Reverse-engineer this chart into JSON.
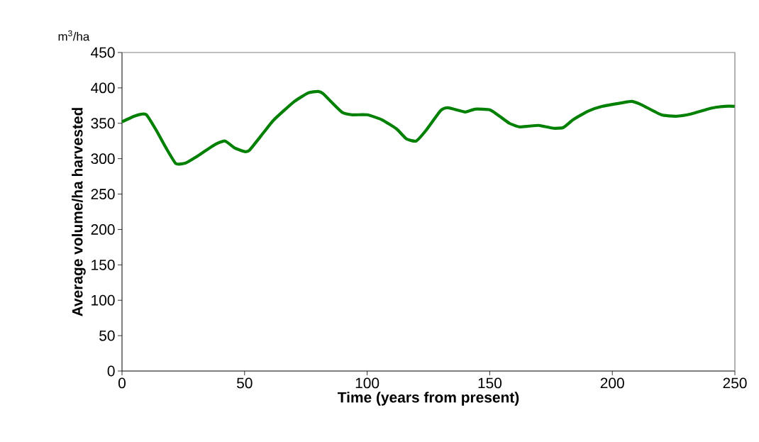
{
  "chart_data": {
    "type": "line",
    "xlabel": "Time (years from present)",
    "ylabel": "Average volume/ha harvested",
    "annotations": [
      "m$^{3}$/ha"
    ],
    "x": [
      0,
      5,
      8,
      10,
      14,
      18,
      22,
      26,
      30,
      38,
      42,
      46,
      50,
      52,
      58,
      62,
      70,
      76,
      80,
      82,
      86,
      90,
      94,
      100,
      106,
      112,
      116,
      120,
      124,
      130,
      133,
      140,
      144,
      150,
      154,
      158,
      162,
      166,
      170,
      176,
      180,
      184,
      190,
      196,
      204,
      208,
      212,
      220,
      226,
      232,
      240,
      246,
      250
    ],
    "series": [
      {
        "color": "#008000",
        "values": [
          352,
          360,
          363,
          362,
          340,
          315,
          293,
          294,
          302,
          320,
          325,
          315,
          310,
          312,
          338,
          355,
          380,
          393,
          395,
          392,
          378,
          365,
          362,
          362,
          355,
          342,
          328,
          325,
          340,
          368,
          372,
          366,
          370,
          369,
          360,
          350,
          345,
          346,
          347,
          343,
          344,
          355,
          367,
          374,
          379,
          381,
          376,
          362,
          360,
          363,
          371,
          374,
          374
        ]
      }
    ],
    "xlim": [
      0,
      250
    ],
    "ylim": [
      0,
      450
    ],
    "xticks": [
      0,
      50,
      100,
      150,
      200,
      250
    ],
    "yticks": [
      0,
      50,
      100,
      150,
      200,
      250,
      300,
      350,
      400,
      450
    ],
    "grid": false,
    "marker": "none",
    "line_style": "solid"
  }
}
